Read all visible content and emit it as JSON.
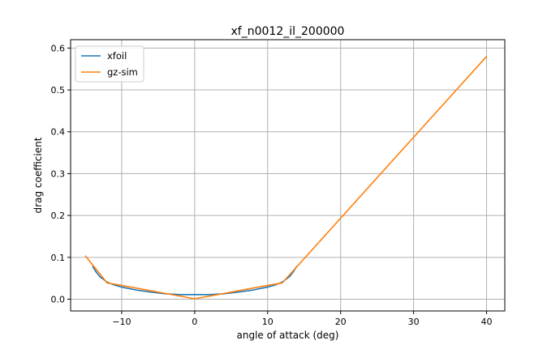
{
  "chart_data": {
    "type": "line",
    "title": "xf_n0012_il_200000",
    "xlabel": "angle of attack (deg)",
    "ylabel": "drag coefficient",
    "xlim": [
      -17,
      42.5
    ],
    "ylim": [
      -0.028,
      0.62
    ],
    "xticks": [
      -10,
      0,
      10,
      20,
      30,
      40
    ],
    "xtick_labels": [
      "−10",
      "0",
      "10",
      "20",
      "30",
      "40"
    ],
    "yticks": [
      0.0,
      0.1,
      0.2,
      0.3,
      0.4,
      0.5,
      0.6
    ],
    "ytick_labels": [
      "0.0",
      "0.1",
      "0.2",
      "0.3",
      "0.4",
      "0.5",
      "0.6"
    ],
    "grid": true,
    "legend": "upper-left",
    "series": [
      {
        "name": "xfoil",
        "color": "#1f77b4",
        "x": [
          -14,
          -13.5,
          -13,
          -12,
          -11,
          -10,
          -8,
          -6,
          -4,
          -2,
          0,
          2,
          4,
          6,
          8,
          10,
          11,
          12,
          13,
          13.5,
          14
        ],
        "y": [
          0.079,
          0.065,
          0.054,
          0.041,
          0.034,
          0.029,
          0.022,
          0.017,
          0.013,
          0.011,
          0.011,
          0.011,
          0.013,
          0.017,
          0.022,
          0.029,
          0.034,
          0.041,
          0.054,
          0.065,
          0.079
        ]
      },
      {
        "name": "gz-sim",
        "color": "#ff7f0e",
        "x": [
          -15,
          -12,
          -10,
          0,
          10,
          12,
          40
        ],
        "y": [
          0.104,
          0.039,
          0.033,
          0.001,
          0.033,
          0.039,
          0.58
        ]
      }
    ]
  }
}
